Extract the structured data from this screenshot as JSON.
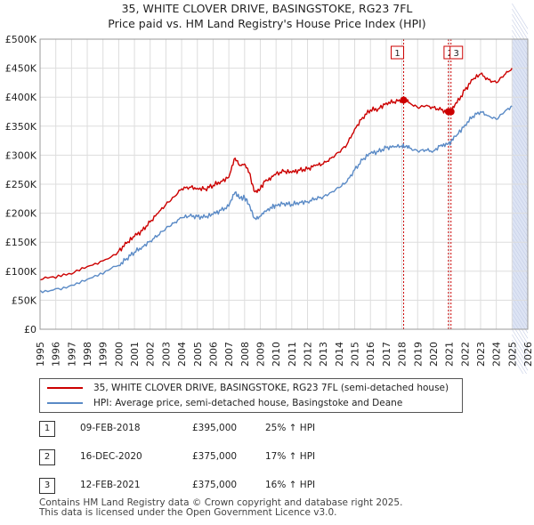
{
  "chart_data": {
    "type": "line",
    "title": "35, WHITE CLOVER DRIVE, BASINGSTOKE, RG23 7FL",
    "subtitle": "Price paid vs. HM Land Registry's House Price Index (HPI)",
    "xlim": [
      1995,
      2026
    ],
    "ylim": [
      0,
      500000
    ],
    "y_ticks": [
      0,
      50000,
      100000,
      150000,
      200000,
      250000,
      300000,
      350000,
      400000,
      450000,
      500000
    ],
    "y_tick_labels": [
      "£0",
      "£50K",
      "£100K",
      "£150K",
      "£200K",
      "£250K",
      "£300K",
      "£350K",
      "£400K",
      "£450K",
      "£500K"
    ],
    "x_ticks": [
      1995,
      1996,
      1997,
      1998,
      1999,
      2000,
      2001,
      2002,
      2003,
      2004,
      2005,
      2006,
      2007,
      2008,
      2009,
      2010,
      2011,
      2012,
      2013,
      2014,
      2015,
      2016,
      2017,
      2018,
      2019,
      2020,
      2021,
      2022,
      2023,
      2024,
      2025,
      2026
    ],
    "x_tick_labels": [
      "1995",
      "1996",
      "1997",
      "1998",
      "1999",
      "2000",
      "2001",
      "2002",
      "2003",
      "2004",
      "2005",
      "2006",
      "2007",
      "2008",
      "2009",
      "2010",
      "2011",
      "2012",
      "2013",
      "2014",
      "2015",
      "2016",
      "2017",
      "2018",
      "2019",
      "2020",
      "2021",
      "2022",
      "2023",
      "2024",
      "2025",
      "2026"
    ],
    "grid": true,
    "forecast_start": 2025.0,
    "series": [
      {
        "name": "35, WHITE CLOVER DRIVE, BASINGSTOKE, RG23 7FL (semi-detached house)",
        "color": "#cc0000",
        "x": [
          1995.0,
          1996.0,
          1997.0,
          1998.0,
          1999.0,
          2000.0,
          2000.5,
          2001.0,
          2001.5,
          2002.0,
          2002.5,
          2003.0,
          2003.5,
          2004.0,
          2004.5,
          2005.0,
          2005.5,
          2006.0,
          2006.5,
          2007.0,
          2007.4,
          2007.7,
          2008.0,
          2008.3,
          2008.6,
          2009.0,
          2009.3,
          2009.7,
          2010.0,
          2010.5,
          2011.0,
          2011.5,
          2012.0,
          2012.5,
          2013.0,
          2013.5,
          2014.0,
          2014.5,
          2015.0,
          2015.5,
          2016.0,
          2016.5,
          2017.0,
          2017.5,
          2018.0,
          2018.11,
          2018.5,
          2019.0,
          2019.5,
          2020.0,
          2020.5,
          2020.96,
          2021.12,
          2021.5,
          2022.0,
          2022.5,
          2023.0,
          2023.5,
          2024.0,
          2024.5,
          2025.0
        ],
        "y": [
          85000,
          88000,
          95000,
          108000,
          118000,
          135000,
          148000,
          160000,
          170000,
          185000,
          200000,
          215000,
          228000,
          242000,
          245000,
          243000,
          242000,
          248000,
          255000,
          262000,
          295000,
          282000,
          285000,
          270000,
          238000,
          242000,
          255000,
          262000,
          268000,
          272000,
          270000,
          274000,
          276000,
          282000,
          285000,
          295000,
          305000,
          318000,
          345000,
          365000,
          378000,
          380000,
          390000,
          392000,
          395000,
          395000,
          390000,
          382000,
          385000,
          382000,
          378000,
          375000,
          375000,
          390000,
          412000,
          430000,
          440000,
          430000,
          425000,
          438000,
          450000
        ]
      },
      {
        "name": "HPI: Average price, semi-detached house, Basingstoke and Deane",
        "color": "#5a8ac6",
        "x": [
          1995.0,
          1996.0,
          1997.0,
          1998.0,
          1999.0,
          2000.0,
          2000.5,
          2001.0,
          2001.5,
          2002.0,
          2002.5,
          2003.0,
          2003.5,
          2004.0,
          2004.5,
          2005.0,
          2005.5,
          2006.0,
          2006.5,
          2007.0,
          2007.4,
          2007.7,
          2008.0,
          2008.3,
          2008.6,
          2009.0,
          2009.3,
          2009.7,
          2010.0,
          2010.5,
          2011.0,
          2011.5,
          2012.0,
          2012.5,
          2013.0,
          2013.5,
          2014.0,
          2014.5,
          2015.0,
          2015.5,
          2016.0,
          2016.5,
          2017.0,
          2017.5,
          2018.0,
          2018.11,
          2018.5,
          2019.0,
          2019.5,
          2020.0,
          2020.5,
          2020.96,
          2021.12,
          2021.5,
          2022.0,
          2022.5,
          2023.0,
          2023.5,
          2024.0,
          2024.5,
          2025.0
        ],
        "y": [
          67000,
          70000,
          76000,
          86000,
          95000,
          110000,
          122000,
          133000,
          142000,
          152000,
          162000,
          174000,
          183000,
          192000,
          195000,
          194000,
          193000,
          198000,
          205000,
          212000,
          236000,
          225000,
          227000,
          215000,
          192000,
          195000,
          204000,
          210000,
          214000,
          217000,
          215000,
          219000,
          220000,
          225000,
          228000,
          236000,
          244000,
          254000,
          275000,
          292000,
          303000,
          306000,
          313000,
          314000,
          316000,
          316000,
          312000,
          307000,
          309000,
          307000,
          318000,
          320000,
          323000,
          335000,
          352000,
          367000,
          375000,
          368000,
          362000,
          374000,
          385000
        ]
      }
    ],
    "transactions": [
      {
        "label": "1",
        "x": 2018.11,
        "y": 395000
      },
      {
        "label": "2",
        "x": 2020.96,
        "y": 375000
      },
      {
        "label": "3",
        "x": 2021.12,
        "y": 375000
      }
    ]
  },
  "legend": {
    "property_label": "35, WHITE CLOVER DRIVE, BASINGSTOKE, RG23 7FL (semi-detached house)",
    "hpi_label": "HPI: Average price, semi-detached house, Basingstoke and Deane"
  },
  "transactions_table": [
    {
      "num": "1",
      "date": "09-FEB-2018",
      "price": "£395,000",
      "hpi": "25% ↑ HPI"
    },
    {
      "num": "2",
      "date": "16-DEC-2020",
      "price": "£375,000",
      "hpi": "17% ↑ HPI"
    },
    {
      "num": "3",
      "date": "12-FEB-2021",
      "price": "£375,000",
      "hpi": "16% ↑ HPI"
    }
  ],
  "footer": {
    "line1": "Contains HM Land Registry data © Crown copyright and database right 2025.",
    "line2": "This data is licensed under the Open Government Licence v3.0."
  },
  "colors": {
    "property": "#cc0000",
    "hpi": "#5a8ac6",
    "marker": "#cc0000",
    "vline": "#cc0000",
    "shade": "#dde4f4",
    "grid": "#dddddd"
  }
}
